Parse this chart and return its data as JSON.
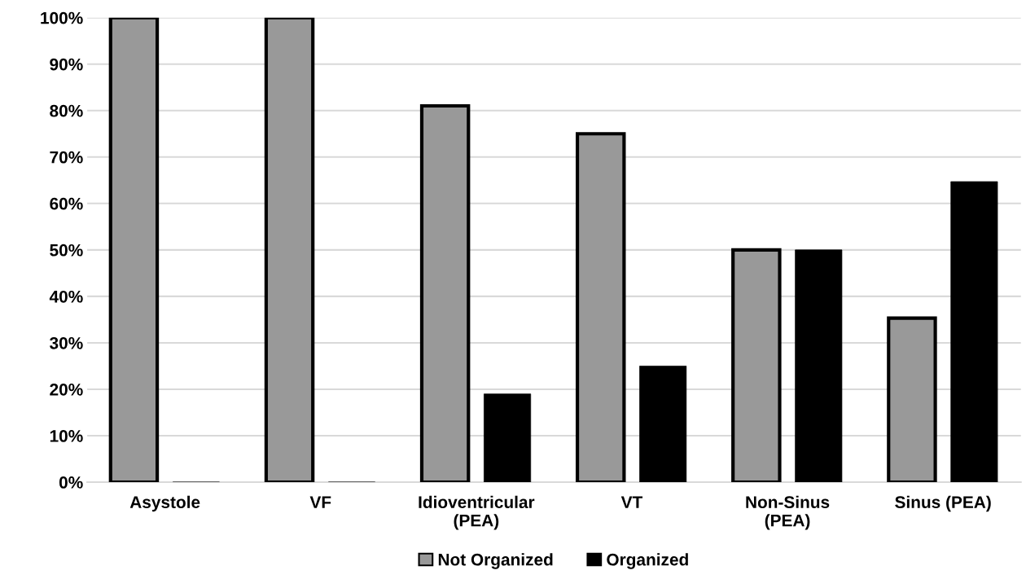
{
  "chart_data": {
    "type": "bar",
    "categories": [
      "Asystole",
      "VF",
      "Idioventricular\n(PEA)",
      "VT",
      "Non-Sinus\n(PEA)",
      "Sinus (PEA)"
    ],
    "series": [
      {
        "name": "Not Organized",
        "color": "#999999",
        "values": [
          100,
          100,
          81,
          75,
          50,
          35.3
        ]
      },
      {
        "name": "Organized",
        "color": "#000000",
        "values": [
          0,
          0,
          19,
          25,
          50,
          64.7
        ]
      }
    ],
    "ylim": [
      0,
      100
    ],
    "yticks": [
      {
        "value": 0,
        "label": "0%"
      },
      {
        "value": 10,
        "label": "10%"
      },
      {
        "value": 20,
        "label": "20%"
      },
      {
        "value": 30,
        "label": "30%"
      },
      {
        "value": 40,
        "label": "40%"
      },
      {
        "value": 50,
        "label": "50%"
      },
      {
        "value": 60,
        "label": "60%"
      },
      {
        "value": 70,
        "label": "70%"
      },
      {
        "value": 80,
        "label": "80%"
      },
      {
        "value": 90,
        "label": "90%"
      },
      {
        "value": 100,
        "label": "100%"
      }
    ],
    "grid": "y",
    "legend": "bottom"
  }
}
